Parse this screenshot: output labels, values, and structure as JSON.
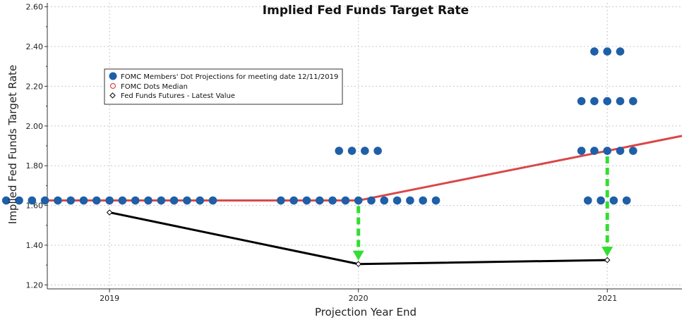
{
  "chart_data": {
    "type": "scatter",
    "title": "Implied Fed Funds Target Rate",
    "xlabel": "Projection Year End",
    "ylabel": "Implied Fed Funds Target Rate",
    "xlim": [
      2018.75,
      2021.3
    ],
    "ylim": [
      1.18,
      2.62
    ],
    "x_ticks": [
      2019,
      2020,
      2021
    ],
    "x_tick_labels": [
      "2019",
      "2020",
      "2021"
    ],
    "y_ticks": [
      1.2,
      1.4,
      1.6,
      1.8,
      2.0,
      2.2,
      2.4,
      2.6
    ],
    "y_tick_labels": [
      "1.20",
      "1.40",
      "1.60",
      "1.80",
      "2.00",
      "2.20",
      "2.40",
      "2.60"
    ],
    "grid": true,
    "legend_position": "top-left",
    "colors": {
      "dots": "#1f5fa8",
      "median": "#d94848",
      "futures": "#000000",
      "arrow": "#33dd33"
    },
    "series": [
      {
        "name": "FOMC Members' Dot Projections for meeting date 12/11/2019",
        "kind": "dots",
        "groups": [
          {
            "year": 2019,
            "rate": 1.625,
            "count": 17
          },
          {
            "year": 2020,
            "rate": 1.875,
            "count": 4
          },
          {
            "year": 2020,
            "rate": 1.625,
            "count": 13
          },
          {
            "year": 2021,
            "rate": 2.375,
            "count": 3
          },
          {
            "year": 2021,
            "rate": 2.125,
            "count": 5
          },
          {
            "year": 2021,
            "rate": 1.875,
            "count": 5
          },
          {
            "year": 2021,
            "rate": 1.625,
            "count": 4
          }
        ]
      },
      {
        "name": "FOMC Dots Median",
        "kind": "median",
        "x": [
          2018.75,
          2019,
          2020,
          2021,
          2021.3
        ],
        "y": [
          1.625,
          1.625,
          1.625,
          1.875,
          1.95
        ]
      },
      {
        "name": "Fed Funds Futures - Latest Value",
        "kind": "futures",
        "x": [
          2019,
          2020,
          2021
        ],
        "y": [
          1.565,
          1.305,
          1.325
        ]
      }
    ],
    "arrows": [
      {
        "x": 2020,
        "from": 1.625,
        "to": 1.33
      },
      {
        "x": 2021,
        "from": 1.875,
        "to": 1.35
      }
    ]
  }
}
